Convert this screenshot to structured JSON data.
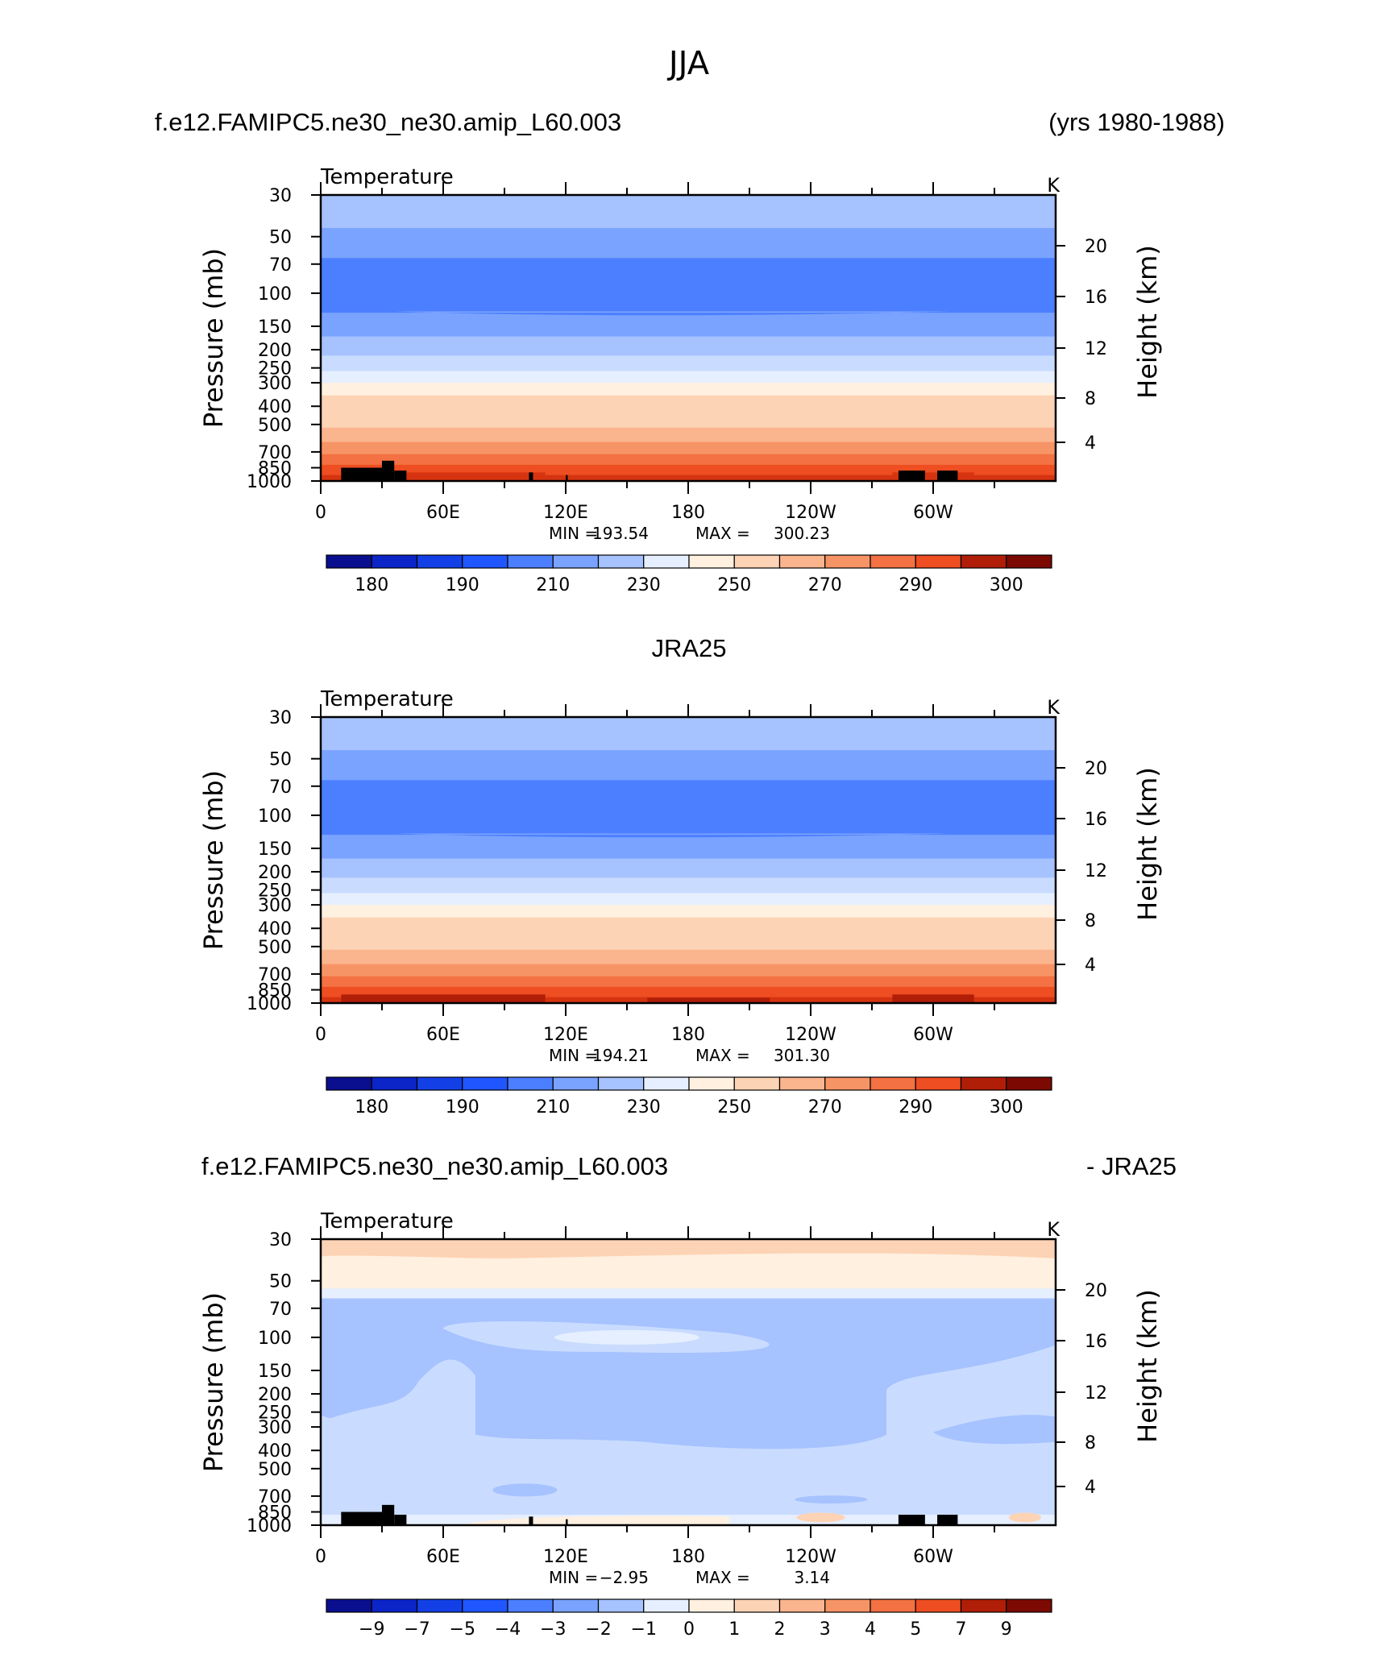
{
  "figure_title": "JJA",
  "chart_data": [
    {
      "type": "heatmap",
      "panel_label_left": "f.e12.FAMIPC5.ne30_ne30.amip_L60.003",
      "panel_label_right": "(yrs 1980-1988)",
      "title": "Temperature",
      "units": "K",
      "xlabel": "",
      "ylabel": "Pressure  (mb)",
      "y2label": "Height  (km)",
      "x_ticks": [
        "0",
        "60E",
        "120E",
        "180",
        "120W",
        "60W"
      ],
      "x_range": [
        0,
        360
      ],
      "y_ticks": [
        "30",
        "50",
        "70",
        "100",
        "150",
        "200",
        "250",
        "300",
        "400",
        "500",
        "700",
        "850",
        "1000"
      ],
      "y_range_mb": [
        1000,
        30
      ],
      "y2_ticks": [
        "20",
        "16",
        "12",
        "8",
        "4"
      ],
      "stats": {
        "min_label": "MIN =",
        "min": "193.54",
        "max_label": "MAX =",
        "max": "300.23"
      },
      "colorbar_levels": [
        "180",
        "190",
        "210",
        "230",
        "250",
        "270",
        "290",
        "300"
      ],
      "band_values_k_top_to_bottom": [
        214,
        203,
        196,
        205,
        215,
        224,
        233,
        241,
        250,
        259,
        267,
        275,
        283,
        291,
        297
      ]
    },
    {
      "type": "heatmap",
      "panel_label_center": "JRA25",
      "title": "Temperature",
      "units": "K",
      "xlabel": "",
      "ylabel": "Pressure  (mb)",
      "y2label": "Height  (km)",
      "x_ticks": [
        "0",
        "60E",
        "120E",
        "180",
        "120W",
        "60W"
      ],
      "x_range": [
        0,
        360
      ],
      "y_ticks": [
        "30",
        "50",
        "70",
        "100",
        "150",
        "200",
        "250",
        "300",
        "400",
        "500",
        "700",
        "850",
        "1000"
      ],
      "y_range_mb": [
        1000,
        30
      ],
      "y2_ticks": [
        "20",
        "16",
        "12",
        "8",
        "4"
      ],
      "stats": {
        "min_label": "MIN =",
        "min": "194.21",
        "max_label": "MAX =",
        "max": "301.30"
      },
      "colorbar_levels": [
        "180",
        "190",
        "210",
        "230",
        "250",
        "270",
        "290",
        "300"
      ],
      "band_values_k_top_to_bottom": [
        214,
        205,
        197,
        205,
        215,
        224,
        233,
        241,
        250,
        259,
        267,
        275,
        283,
        291,
        298
      ]
    },
    {
      "type": "heatmap",
      "panel_label_left": "f.e12.FAMIPC5.ne30_ne30.amip_L60.003",
      "panel_label_right": "- JRA25",
      "title": "Temperature",
      "units": "K",
      "xlabel": "",
      "ylabel": "Pressure  (mb)",
      "y2label": "Height  (km)",
      "x_ticks": [
        "0",
        "60E",
        "120E",
        "180",
        "120W",
        "60W"
      ],
      "x_range": [
        0,
        360
      ],
      "y_ticks": [
        "30",
        "50",
        "70",
        "100",
        "150",
        "200",
        "250",
        "300",
        "400",
        "500",
        "700",
        "850",
        "1000"
      ],
      "y_range_mb": [
        1000,
        30
      ],
      "y2_ticks": [
        "20",
        "16",
        "12",
        "8",
        "4"
      ],
      "stats": {
        "min_label": "MIN =",
        "min": "−2.95",
        "max_label": "MAX =",
        "max": "3.14"
      },
      "colorbar_levels": [
        "−9",
        "−7",
        "−5",
        "−4",
        "−3",
        "−2",
        "−1",
        "0",
        "1",
        "2",
        "3",
        "4",
        "5",
        "7",
        "9"
      ]
    }
  ],
  "colors": {
    "palette": [
      "#0a0f8f",
      "#0b25c8",
      "#1340e6",
      "#2056ff",
      "#4c7fff",
      "#7aa3ff",
      "#a6c2ff",
      "#c9dcff",
      "#e6efff",
      "#fff0e0",
      "#fdd3b5",
      "#fbb58e",
      "#f79466",
      "#f37142",
      "#ee4e22",
      "#d63410",
      "#b01e08",
      "#7c0a03"
    ],
    "topography": "#000000"
  }
}
